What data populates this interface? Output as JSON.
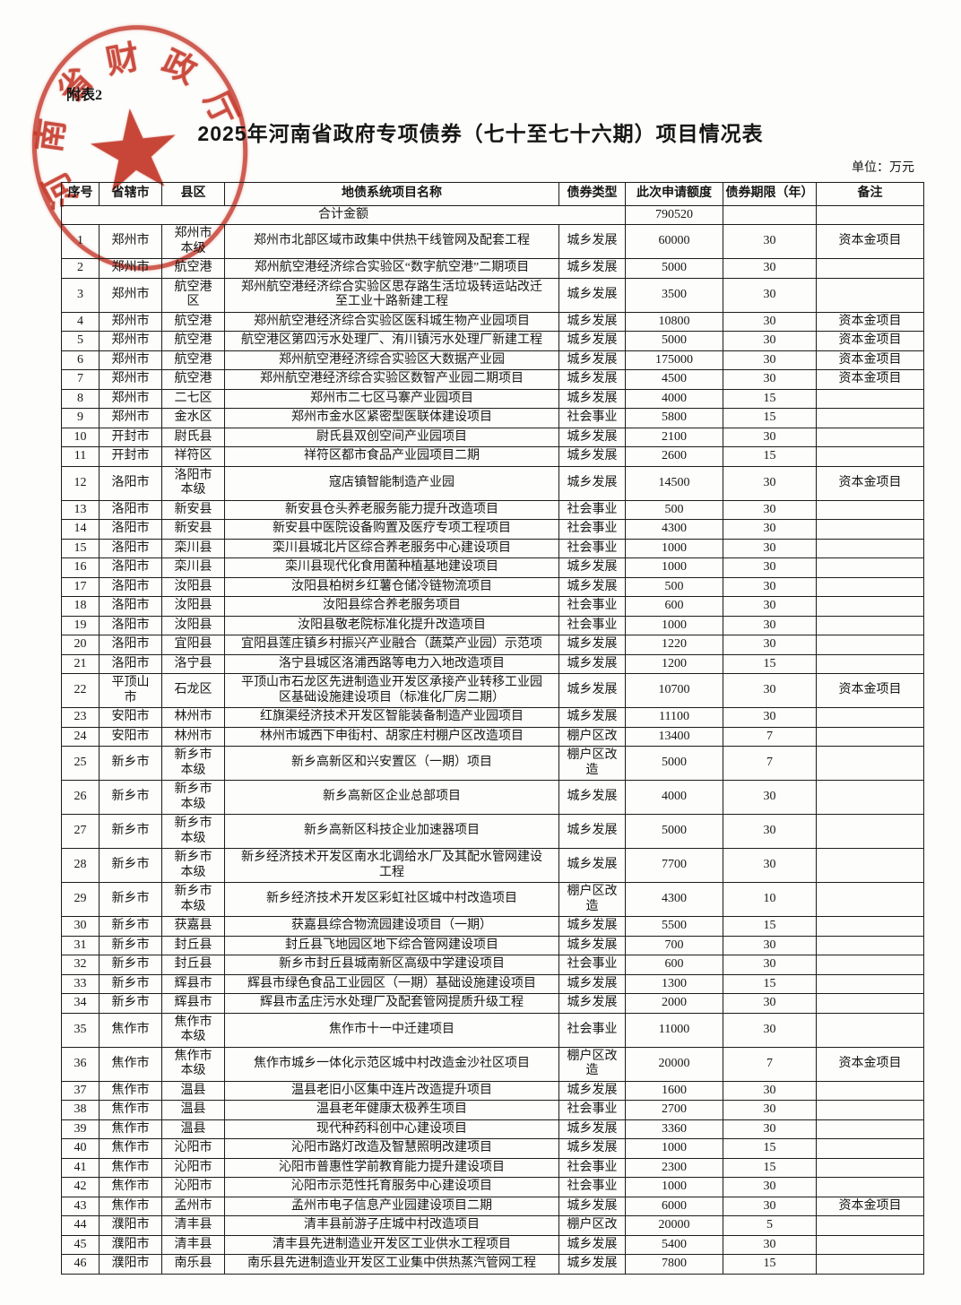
{
  "page": {
    "attachment_label": "附表2",
    "title": "2025年河南省政府专项债券（七十至七十六期）项目情况表",
    "unit_label": "单位：万元",
    "stamp": {
      "arc_text": "河南省财政厅",
      "chars": [
        "河",
        "南",
        "省",
        "财",
        "政",
        "厅"
      ],
      "star_icon": "★",
      "color": "#c63628"
    }
  },
  "table": {
    "columns": [
      "序号",
      "省辖市",
      "县区",
      "地债系统项目名称",
      "债券类型",
      "此次申请额度",
      "债券期限（年）",
      "备注"
    ],
    "total": {
      "label": "合计金额",
      "amount": "790520"
    },
    "rows": [
      [
        "1",
        "郑州市",
        "郑州市本级",
        "郑州市北部区域市政集中供热干线管网及配套工程",
        "城乡发展",
        "60000",
        "30",
        "资本金项目"
      ],
      [
        "2",
        "郑州市",
        "航空港",
        "郑州航空港经济综合实验区“数字航空港”二期项目",
        "城乡发展",
        "5000",
        "30",
        ""
      ],
      [
        "3",
        "郑州市",
        "航空港区",
        "郑州航空港经济综合实验区思存路生活垃圾转运站改迁至工业十路新建工程",
        "城乡发展",
        "3500",
        "30",
        ""
      ],
      [
        "4",
        "郑州市",
        "航空港",
        "郑州航空港经济综合实验区医科城生物产业园项目",
        "城乡发展",
        "10800",
        "30",
        "资本金项目"
      ],
      [
        "5",
        "郑州市",
        "航空港",
        "航空港区第四污水处理厂、洧川镇污水处理厂新建工程",
        "城乡发展",
        "5000",
        "30",
        "资本金项目"
      ],
      [
        "6",
        "郑州市",
        "航空港",
        "郑州航空港经济综合实验区大数据产业园",
        "城乡发展",
        "175000",
        "30",
        "资本金项目"
      ],
      [
        "7",
        "郑州市",
        "航空港",
        "郑州航空港经济综合实验区数智产业园二期项目",
        "城乡发展",
        "4500",
        "30",
        "资本金项目"
      ],
      [
        "8",
        "郑州市",
        "二七区",
        "郑州市二七区马寨产业园项目",
        "城乡发展",
        "4000",
        "15",
        ""
      ],
      [
        "9",
        "郑州市",
        "金水区",
        "郑州市金水区紧密型医联体建设项目",
        "社会事业",
        "5800",
        "15",
        ""
      ],
      [
        "10",
        "开封市",
        "尉氏县",
        "尉氏县双创空间产业园项目",
        "城乡发展",
        "2100",
        "30",
        ""
      ],
      [
        "11",
        "开封市",
        "祥符区",
        "祥符区都市食品产业园项目二期",
        "城乡发展",
        "2600",
        "15",
        ""
      ],
      [
        "12",
        "洛阳市",
        "洛阳市本级",
        "寇店镇智能制造产业园",
        "城乡发展",
        "14500",
        "30",
        "资本金项目"
      ],
      [
        "13",
        "洛阳市",
        "新安县",
        "新安县仓头养老服务能力提升改造项目",
        "社会事业",
        "500",
        "30",
        ""
      ],
      [
        "14",
        "洛阳市",
        "新安县",
        "新安县中医院设备购置及医疗专项工程项目",
        "社会事业",
        "4300",
        "30",
        ""
      ],
      [
        "15",
        "洛阳市",
        "栾川县",
        "栾川县城北片区综合养老服务中心建设项目",
        "社会事业",
        "1000",
        "30",
        ""
      ],
      [
        "16",
        "洛阳市",
        "栾川县",
        "栾川县现代化食用菌种植基地建设项目",
        "城乡发展",
        "1000",
        "30",
        ""
      ],
      [
        "17",
        "洛阳市",
        "汝阳县",
        "汝阳县柏树乡红薯仓储冷链物流项目",
        "城乡发展",
        "500",
        "30",
        ""
      ],
      [
        "18",
        "洛阳市",
        "汝阳县",
        "汝阳县综合养老服务项目",
        "社会事业",
        "600",
        "30",
        ""
      ],
      [
        "19",
        "洛阳市",
        "汝阳县",
        "汝阳县敬老院标准化提升改造项目",
        "社会事业",
        "1000",
        "30",
        ""
      ],
      [
        "20",
        "洛阳市",
        "宜阳县",
        "宜阳县莲庄镇乡村振兴产业融合（蔬菜产业园）示范项",
        "城乡发展",
        "1220",
        "30",
        ""
      ],
      [
        "21",
        "洛阳市",
        "洛宁县",
        "洛宁县城区洛浦西路等电力入地改造项目",
        "城乡发展",
        "1200",
        "15",
        ""
      ],
      [
        "22",
        "平顶山市",
        "石龙区",
        "平顶山市石龙区先进制造业开发区承接产业转移工业园区基础设施建设项目（标准化厂房二期）",
        "城乡发展",
        "10700",
        "30",
        "资本金项目"
      ],
      [
        "23",
        "安阳市",
        "林州市",
        "红旗渠经济技术开发区智能装备制造产业园项目",
        "城乡发展",
        "11100",
        "30",
        ""
      ],
      [
        "24",
        "安阳市",
        "林州市",
        "林州市城西下申街村、胡家庄村棚户区改造项目",
        "棚户区改",
        "13400",
        "7",
        ""
      ],
      [
        "25",
        "新乡市",
        "新乡市本级",
        "新乡高新区和兴安置区（一期）项目",
        "棚户区改造",
        "5000",
        "7",
        ""
      ],
      [
        "26",
        "新乡市",
        "新乡市本级",
        "新乡高新区企业总部项目",
        "城乡发展",
        "4000",
        "30",
        ""
      ],
      [
        "27",
        "新乡市",
        "新乡市本级",
        "新乡高新区科技企业加速器项目",
        "城乡发展",
        "5000",
        "30",
        ""
      ],
      [
        "28",
        "新乡市",
        "新乡市本级",
        "新乡经济技术开发区南水北调给水厂及其配水管网建设工程",
        "城乡发展",
        "7700",
        "30",
        ""
      ],
      [
        "29",
        "新乡市",
        "新乡市本级",
        "新乡经济技术开发区彩虹社区城中村改造项目",
        "棚户区改造",
        "4300",
        "10",
        ""
      ],
      [
        "30",
        "新乡市",
        "获嘉县",
        "获嘉县综合物流园建设项目（一期）",
        "城乡发展",
        "5500",
        "15",
        ""
      ],
      [
        "31",
        "新乡市",
        "封丘县",
        "封丘县飞地园区地下综合管网建设项目",
        "城乡发展",
        "700",
        "30",
        ""
      ],
      [
        "32",
        "新乡市",
        "封丘县",
        "新乡市封丘县城南新区高级中学建设项目",
        "社会事业",
        "600",
        "30",
        ""
      ],
      [
        "33",
        "新乡市",
        "辉县市",
        "辉县市绿色食品工业园区（一期）基础设施建设项目",
        "城乡发展",
        "1300",
        "15",
        ""
      ],
      [
        "34",
        "新乡市",
        "辉县市",
        "辉县市孟庄污水处理厂及配套管网提质升级工程",
        "城乡发展",
        "2000",
        "30",
        ""
      ],
      [
        "35",
        "焦作市",
        "焦作市本级",
        "焦作市十一中迁建项目",
        "社会事业",
        "11000",
        "30",
        ""
      ],
      [
        "36",
        "焦作市",
        "焦作市本级",
        "焦作市城乡一体化示范区城中村改造金沙社区项目",
        "棚户区改造",
        "20000",
        "7",
        "资本金项目"
      ],
      [
        "37",
        "焦作市",
        "温县",
        "温县老旧小区集中连片改造提升项目",
        "城乡发展",
        "1600",
        "30",
        ""
      ],
      [
        "38",
        "焦作市",
        "温县",
        "温县老年健康太极养生项目",
        "社会事业",
        "2700",
        "30",
        ""
      ],
      [
        "39",
        "焦作市",
        "温县",
        "现代种药科创中心建设项目",
        "城乡发展",
        "3360",
        "30",
        ""
      ],
      [
        "40",
        "焦作市",
        "沁阳市",
        "沁阳市路灯改造及智慧照明改建项目",
        "城乡发展",
        "1000",
        "15",
        ""
      ],
      [
        "41",
        "焦作市",
        "沁阳市",
        "沁阳市普惠性学前教育能力提升建设项目",
        "社会事业",
        "2300",
        "15",
        ""
      ],
      [
        "42",
        "焦作市",
        "沁阳市",
        "沁阳市示范性托育服务中心建设项目",
        "社会事业",
        "1000",
        "30",
        ""
      ],
      [
        "43",
        "焦作市",
        "孟州市",
        "孟州市电子信息产业园建设项目二期",
        "城乡发展",
        "6000",
        "30",
        "资本金项目"
      ],
      [
        "44",
        "濮阳市",
        "清丰县",
        "清丰县前游子庄城中村改造项目",
        "棚户区改",
        "20000",
        "5",
        ""
      ],
      [
        "45",
        "濮阳市",
        "清丰县",
        "清丰县先进制造业开发区工业供水工程项目",
        "城乡发展",
        "5400",
        "30",
        ""
      ],
      [
        "46",
        "濮阳市",
        "南乐县",
        "南乐县先进制造业开发区工业集中供热蒸汽管网工程",
        "城乡发展",
        "7800",
        "15",
        ""
      ]
    ]
  }
}
